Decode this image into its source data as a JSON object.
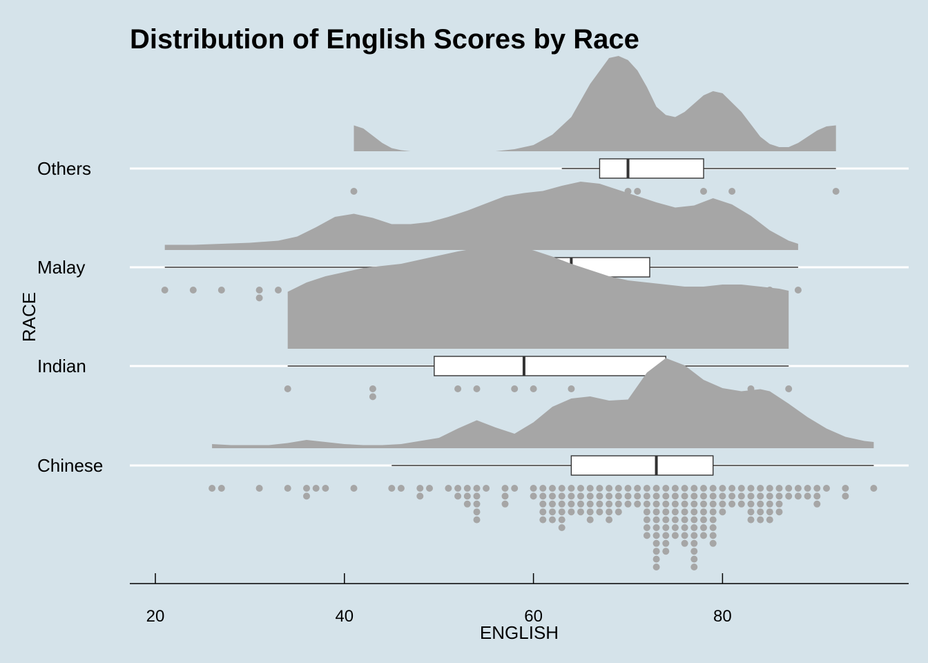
{
  "chart_data": {
    "type": "raincloud",
    "title": "Distribution of English Scores by Race",
    "xlabel": "ENGLISH",
    "ylabel": "RACE",
    "xlim": [
      17.3,
      99.3
    ],
    "xticks": [
      20,
      40,
      60,
      80
    ],
    "grid": "horizontal lines only",
    "colors": {
      "background": "#d5e3ea",
      "density": "#a6a6a6",
      "dots": "#a6a6a6",
      "box_fill": "#ffffff",
      "box_stroke": "#333333",
      "gridline": "#ffffff"
    },
    "groups": [
      {
        "name": "Others",
        "box": {
          "min": 63,
          "q1": 67,
          "median": 70,
          "q3": 78,
          "max": 92
        },
        "density": [
          [
            41,
            0.25
          ],
          [
            42,
            0.22
          ],
          [
            43,
            0.15
          ],
          [
            44,
            0.08
          ],
          [
            45,
            0.03
          ],
          [
            46,
            0.01
          ],
          [
            47,
            0.0
          ],
          [
            48,
            0.0
          ],
          [
            56,
            0.0
          ],
          [
            58,
            0.02
          ],
          [
            60,
            0.06
          ],
          [
            62,
            0.16
          ],
          [
            64,
            0.33
          ],
          [
            66,
            0.65
          ],
          [
            68,
            0.9
          ],
          [
            69,
            0.92
          ],
          [
            70,
            0.88
          ],
          [
            71,
            0.78
          ],
          [
            72,
            0.62
          ],
          [
            73,
            0.43
          ],
          [
            74,
            0.35
          ],
          [
            75,
            0.33
          ],
          [
            76,
            0.38
          ],
          [
            77,
            0.46
          ],
          [
            78,
            0.54
          ],
          [
            79,
            0.58
          ],
          [
            80,
            0.56
          ],
          [
            82,
            0.38
          ],
          [
            84,
            0.14
          ],
          [
            85,
            0.07
          ],
          [
            86,
            0.04
          ],
          [
            87,
            0.04
          ],
          [
            88,
            0.08
          ],
          [
            89,
            0.14
          ],
          [
            90,
            0.2
          ],
          [
            91,
            0.24
          ],
          [
            92,
            0.25
          ]
        ],
        "dots": [
          [
            41,
            1
          ],
          [
            63,
            1
          ],
          [
            67,
            1
          ],
          [
            68,
            1
          ],
          [
            70,
            1
          ],
          [
            71,
            1
          ],
          [
            78,
            1
          ],
          [
            81,
            1
          ],
          [
            92,
            1
          ]
        ]
      },
      {
        "name": "Malay",
        "box": {
          "min": 21,
          "q1": 51.5,
          "median": 64,
          "q3": 72.3,
          "max": 88
        },
        "density": [
          [
            21,
            0.05
          ],
          [
            24,
            0.05
          ],
          [
            27,
            0.06
          ],
          [
            30,
            0.07
          ],
          [
            33,
            0.09
          ],
          [
            35,
            0.13
          ],
          [
            37,
            0.22
          ],
          [
            39,
            0.32
          ],
          [
            41,
            0.35
          ],
          [
            43,
            0.31
          ],
          [
            45,
            0.25
          ],
          [
            47,
            0.25
          ],
          [
            49,
            0.27
          ],
          [
            51,
            0.32
          ],
          [
            53,
            0.38
          ],
          [
            55,
            0.45
          ],
          [
            57,
            0.52
          ],
          [
            59,
            0.55
          ],
          [
            61,
            0.57
          ],
          [
            63,
            0.62
          ],
          [
            65,
            0.66
          ],
          [
            67,
            0.64
          ],
          [
            69,
            0.58
          ],
          [
            71,
            0.52
          ],
          [
            73,
            0.46
          ],
          [
            75,
            0.41
          ],
          [
            77,
            0.43
          ],
          [
            79,
            0.5
          ],
          [
            81,
            0.44
          ],
          [
            83,
            0.33
          ],
          [
            85,
            0.19
          ],
          [
            87,
            0.09
          ],
          [
            88,
            0.06
          ]
        ],
        "dots": [
          [
            21,
            1
          ],
          [
            24,
            1
          ],
          [
            27,
            1
          ],
          [
            31,
            2
          ],
          [
            33,
            1
          ],
          [
            36,
            1
          ],
          [
            39,
            3
          ],
          [
            40,
            3
          ],
          [
            41,
            4
          ],
          [
            42,
            2
          ],
          [
            43,
            1
          ],
          [
            44,
            2
          ],
          [
            45,
            1
          ],
          [
            46,
            1
          ],
          [
            50,
            3
          ],
          [
            51,
            3
          ],
          [
            52,
            1
          ],
          [
            53,
            1
          ],
          [
            54,
            1
          ],
          [
            55,
            2
          ],
          [
            56,
            1
          ],
          [
            57,
            3
          ],
          [
            58,
            3
          ],
          [
            59,
            3
          ],
          [
            60,
            1
          ],
          [
            61,
            3
          ],
          [
            62,
            3
          ],
          [
            63,
            1
          ],
          [
            64,
            4
          ],
          [
            65,
            3
          ],
          [
            66,
            4
          ],
          [
            67,
            3
          ],
          [
            68,
            4
          ],
          [
            69,
            3
          ],
          [
            70,
            4
          ],
          [
            71,
            2
          ],
          [
            73,
            3
          ],
          [
            75,
            1
          ],
          [
            76,
            1
          ],
          [
            77,
            3
          ],
          [
            78,
            4
          ],
          [
            79,
            2
          ],
          [
            80,
            2
          ],
          [
            81,
            2
          ],
          [
            82,
            2
          ],
          [
            83,
            3
          ],
          [
            84,
            2
          ],
          [
            85,
            2
          ],
          [
            88,
            1
          ]
        ]
      },
      {
        "name": "Indian",
        "box": {
          "min": 34,
          "q1": 49.5,
          "median": 59,
          "q3": 74,
          "max": 87
        },
        "density": [
          [
            34,
            0.55
          ],
          [
            36,
            0.64
          ],
          [
            38,
            0.7
          ],
          [
            40,
            0.74
          ],
          [
            42,
            0.78
          ],
          [
            44,
            0.8
          ],
          [
            46,
            0.82
          ],
          [
            48,
            0.86
          ],
          [
            50,
            0.9
          ],
          [
            52,
            0.94
          ],
          [
            54,
            0.97
          ],
          [
            56,
            1.0
          ],
          [
            58,
            0.99
          ],
          [
            60,
            0.95
          ],
          [
            62,
            0.89
          ],
          [
            64,
            0.82
          ],
          [
            66,
            0.76
          ],
          [
            68,
            0.7
          ],
          [
            70,
            0.66
          ],
          [
            72,
            0.64
          ],
          [
            74,
            0.62
          ],
          [
            76,
            0.6
          ],
          [
            78,
            0.6
          ],
          [
            80,
            0.62
          ],
          [
            82,
            0.62
          ],
          [
            84,
            0.6
          ],
          [
            86,
            0.58
          ],
          [
            87,
            0.56
          ]
        ],
        "dots": [
          [
            34,
            1
          ],
          [
            43,
            2
          ],
          [
            52,
            1
          ],
          [
            54,
            1
          ],
          [
            58,
            1
          ],
          [
            60,
            1
          ],
          [
            64,
            1
          ],
          [
            78,
            1
          ],
          [
            83,
            1
          ],
          [
            87,
            1
          ]
        ]
      },
      {
        "name": "Chinese",
        "box": {
          "min": 45,
          "q1": 64,
          "median": 73,
          "q3": 79,
          "max": 96
        },
        "density": [
          [
            26,
            0.04
          ],
          [
            28,
            0.03
          ],
          [
            30,
            0.03
          ],
          [
            32,
            0.03
          ],
          [
            34,
            0.05
          ],
          [
            36,
            0.08
          ],
          [
            38,
            0.06
          ],
          [
            40,
            0.04
          ],
          [
            42,
            0.03
          ],
          [
            44,
            0.03
          ],
          [
            46,
            0.04
          ],
          [
            48,
            0.07
          ],
          [
            50,
            0.1
          ],
          [
            52,
            0.19
          ],
          [
            54,
            0.27
          ],
          [
            56,
            0.2
          ],
          [
            58,
            0.14
          ],
          [
            60,
            0.25
          ],
          [
            62,
            0.4
          ],
          [
            64,
            0.48
          ],
          [
            66,
            0.5
          ],
          [
            68,
            0.46
          ],
          [
            70,
            0.47
          ],
          [
            72,
            0.73
          ],
          [
            74,
            0.87
          ],
          [
            76,
            0.8
          ],
          [
            78,
            0.66
          ],
          [
            80,
            0.58
          ],
          [
            82,
            0.55
          ],
          [
            84,
            0.57
          ],
          [
            85,
            0.55
          ],
          [
            87,
            0.43
          ],
          [
            89,
            0.3
          ],
          [
            91,
            0.19
          ],
          [
            93,
            0.11
          ],
          [
            95,
            0.07
          ],
          [
            96,
            0.06
          ]
        ],
        "dots": [
          [
            26,
            1
          ],
          [
            27,
            1
          ],
          [
            31,
            1
          ],
          [
            34,
            1
          ],
          [
            36,
            2
          ],
          [
            37,
            1
          ],
          [
            38,
            1
          ],
          [
            41,
            1
          ],
          [
            45,
            1
          ],
          [
            46,
            1
          ],
          [
            48,
            2
          ],
          [
            49,
            1
          ],
          [
            51,
            1
          ],
          [
            52,
            2
          ],
          [
            53,
            3
          ],
          [
            54,
            5
          ],
          [
            55,
            1
          ],
          [
            57,
            3
          ],
          [
            58,
            1
          ],
          [
            60,
            2
          ],
          [
            61,
            5
          ],
          [
            62,
            5
          ],
          [
            63,
            6
          ],
          [
            64,
            4
          ],
          [
            65,
            4
          ],
          [
            66,
            5
          ],
          [
            67,
            4
          ],
          [
            68,
            5
          ],
          [
            69,
            4
          ],
          [
            70,
            3
          ],
          [
            71,
            3
          ],
          [
            72,
            7
          ],
          [
            73,
            11
          ],
          [
            74,
            9
          ],
          [
            75,
            7
          ],
          [
            76,
            8
          ],
          [
            77,
            11
          ],
          [
            78,
            7
          ],
          [
            79,
            8
          ],
          [
            80,
            4
          ],
          [
            81,
            3
          ],
          [
            82,
            3
          ],
          [
            83,
            5
          ],
          [
            84,
            5
          ],
          [
            85,
            5
          ],
          [
            86,
            4
          ],
          [
            87,
            2
          ],
          [
            88,
            2
          ],
          [
            89,
            2
          ],
          [
            90,
            3
          ],
          [
            91,
            1
          ],
          [
            93,
            2
          ],
          [
            96,
            1
          ]
        ]
      }
    ]
  }
}
